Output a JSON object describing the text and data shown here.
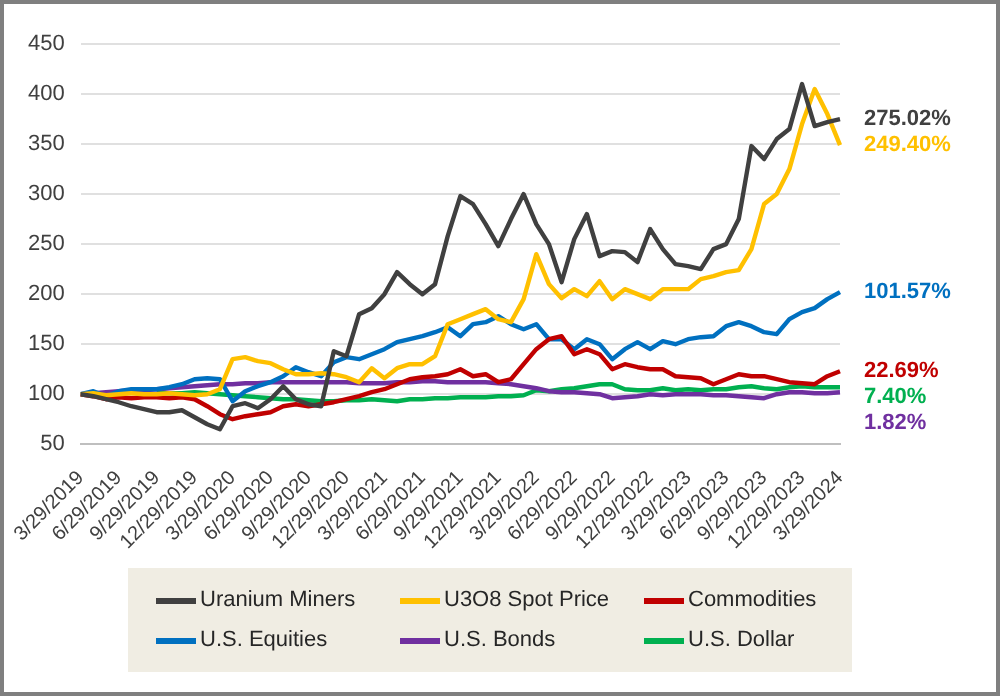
{
  "chart_data": {
    "type": "line",
    "categories": [
      "3/29/2019",
      null,
      null,
      "6/29/2019",
      null,
      null,
      "9/29/2019",
      null,
      null,
      "12/29/2019",
      null,
      null,
      "3/29/2020",
      null,
      null,
      "6/29/2020",
      null,
      null,
      "9/29/2020",
      null,
      null,
      "12/29/2020",
      null,
      null,
      "3/29/2021",
      null,
      null,
      "6/29/2021",
      null,
      null,
      "9/29/2021",
      null,
      null,
      "12/29/2021",
      null,
      null,
      "3/29/2022",
      null,
      null,
      "6/29/2022",
      null,
      null,
      "9/29/2022",
      null,
      null,
      "12/29/2022",
      null,
      null,
      "3/29/2023",
      null,
      null,
      "6/29/2023",
      null,
      null,
      "9/29/2023",
      null,
      null,
      "12/29/2023",
      null,
      null,
      "3/29/2024"
    ],
    "series": [
      {
        "name": "Uranium Miners",
        "color": "#404040",
        "values": [
          100,
          98,
          95,
          92,
          88,
          85,
          82,
          82,
          84,
          77,
          70,
          65,
          88,
          91,
          86,
          95,
          108,
          95,
          90,
          88,
          143,
          138,
          180,
          186,
          200,
          222,
          210,
          200,
          210,
          258,
          298,
          290,
          270,
          248,
          275,
          300,
          270,
          250,
          212,
          255,
          280,
          238,
          243,
          242,
          232,
          265,
          245,
          230,
          228,
          225,
          245,
          250,
          275,
          348,
          335,
          355,
          365,
          410,
          368,
          372,
          375
        ]
      },
      {
        "name": "U3O8 Spot Price",
        "color": "#ffc000",
        "values": [
          100,
          101,
          99,
          100,
          101,
          100,
          100,
          101,
          100,
          99,
          100,
          105,
          135,
          137,
          133,
          131,
          125,
          120,
          120,
          121,
          120,
          117,
          112,
          126,
          116,
          126,
          130,
          130,
          138,
          170,
          175,
          180,
          185,
          175,
          172,
          195,
          240,
          210,
          196,
          205,
          198,
          213,
          195,
          205,
          200,
          195,
          205,
          205,
          205,
          215,
          218,
          222,
          224,
          245,
          290,
          300,
          325,
          370,
          405,
          380,
          349
        ]
      },
      {
        "name": "Commodities",
        "color": "#c00000",
        "values": [
          100,
          98,
          95,
          97,
          96,
          97,
          97,
          96,
          97,
          95,
          88,
          80,
          75,
          78,
          80,
          82,
          88,
          90,
          88,
          90,
          92,
          95,
          98,
          102,
          105,
          110,
          115,
          117,
          118,
          120,
          125,
          118,
          120,
          112,
          115,
          130,
          145,
          155,
          158,
          140,
          145,
          140,
          125,
          130,
          127,
          125,
          125,
          118,
          117,
          116,
          110,
          115,
          120,
          118,
          118,
          115,
          112,
          111,
          110,
          118,
          123
        ]
      },
      {
        "name": "U.S. Equities",
        "color": "#0070c0",
        "values": [
          100,
          103,
          98,
          103,
          105,
          105,
          105,
          107,
          110,
          115,
          116,
          115,
          93,
          103,
          108,
          112,
          118,
          127,
          122,
          118,
          132,
          137,
          135,
          140,
          145,
          152,
          155,
          158,
          162,
          167,
          158,
          170,
          172,
          178,
          170,
          165,
          170,
          155,
          155,
          145,
          155,
          150,
          135,
          145,
          152,
          145,
          153,
          150,
          155,
          157,
          158,
          168,
          172,
          168,
          162,
          160,
          175,
          182,
          186,
          195,
          202
        ]
      },
      {
        "name": "U.S. Bonds",
        "color": "#7030a0",
        "values": [
          100,
          101,
          102,
          103,
          104,
          104,
          105,
          106,
          107,
          108,
          109,
          110,
          110,
          111,
          111,
          112,
          112,
          112,
          112,
          112,
          112,
          112,
          111,
          111,
          111,
          112,
          112,
          113,
          113,
          112,
          112,
          112,
          112,
          111,
          110,
          108,
          106,
          103,
          102,
          102,
          101,
          100,
          96,
          97,
          98,
          100,
          99,
          100,
          100,
          100,
          99,
          99,
          98,
          97,
          96,
          100,
          102,
          102,
          101,
          101,
          102
        ]
      },
      {
        "name": "U.S. Dollar",
        "color": "#00b050",
        "values": [
          null,
          null,
          null,
          null,
          null,
          null,
          102,
          101,
          101,
          102,
          101,
          100,
          99,
          98,
          97,
          96,
          95,
          95,
          94,
          93,
          93,
          94,
          94,
          95,
          94,
          93,
          95,
          95,
          96,
          96,
          97,
          97,
          97,
          98,
          98,
          99,
          104,
          103,
          105,
          106,
          108,
          110,
          110,
          105,
          104,
          104,
          106,
          104,
          105,
          104,
          105,
          105,
          107,
          108,
          106,
          105,
          107,
          108,
          107,
          107,
          107
        ]
      }
    ],
    "annotations": [
      {
        "text": "275.02%",
        "x": "3/29/2024",
        "y": 375
      },
      {
        "text": "249.40%",
        "x": "3/29/2024",
        "y": 349
      },
      {
        "text": "22.69%",
        "x": "3/29/2024",
        "y": 123
      },
      {
        "text": "101.57%",
        "x": "3/29/2024",
        "y": 202
      },
      {
        "text": "1.82%",
        "x": "3/29/2024",
        "y": 102
      },
      {
        "text": "7.40%",
        "x": "3/29/2024",
        "y": 107
      }
    ],
    "ylim": [
      50,
      450
    ],
    "yticks": [
      50,
      100,
      150,
      200,
      250,
      300,
      350,
      400,
      450
    ],
    "grid": "y",
    "legend": "bottom",
    "marker": "none",
    "line_style": "solid"
  }
}
